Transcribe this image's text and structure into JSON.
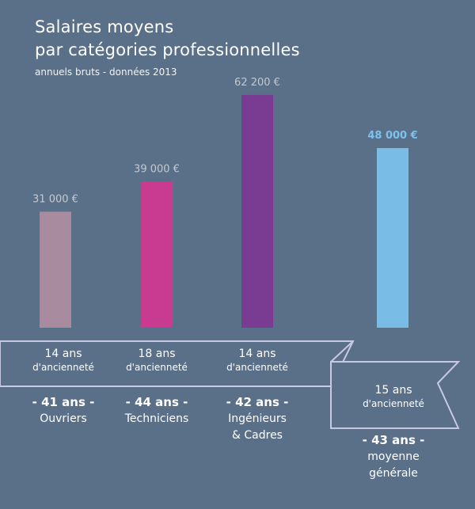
{
  "chart_data": {
    "type": "bar",
    "title_line1": "Salaires moyens",
    "title_line2": "par catégories professionnelles",
    "subtitle": "annuels bruts - données 2013",
    "categories": [
      "Ouvriers",
      "Techniciens",
      "Ingénieurs & Cadres",
      "moyenne générale"
    ],
    "values": [
      31000,
      39000,
      62200,
      48000
    ],
    "value_labels": [
      "31 000 €",
      "39 000 €",
      "62 200 €",
      "48 000 €"
    ],
    "ylim": [
      0,
      70000
    ],
    "colors": [
      "#a98ba0",
      "#c93b90",
      "#7a3c92",
      "#79bce6"
    ],
    "grid": false,
    "groups": [
      {
        "seniority_years": "14 ans",
        "seniority_label": "d'ancienneté",
        "age": "- 41 ans -",
        "category_line1": "Ouvriers",
        "category_line2": ""
      },
      {
        "seniority_years": "18 ans",
        "seniority_label": "d'ancienneté",
        "age": "- 44 ans -",
        "category_line1": "Techniciens",
        "category_line2": ""
      },
      {
        "seniority_years": "14 ans",
        "seniority_label": "d'ancienneté",
        "age": "- 42 ans -",
        "category_line1": "Ingénieurs",
        "category_line2": "& Cadres"
      },
      {
        "seniority_years": "15 ans",
        "seniority_label": "d'ancienneté",
        "age": "- 43 ans -",
        "category_line1": "moyenne",
        "category_line2": "générale"
      }
    ],
    "ribbon_color": "#c7c9e3",
    "value_label_color": "#c3c9d1",
    "highlight_label_color": "#7cc2ee"
  }
}
